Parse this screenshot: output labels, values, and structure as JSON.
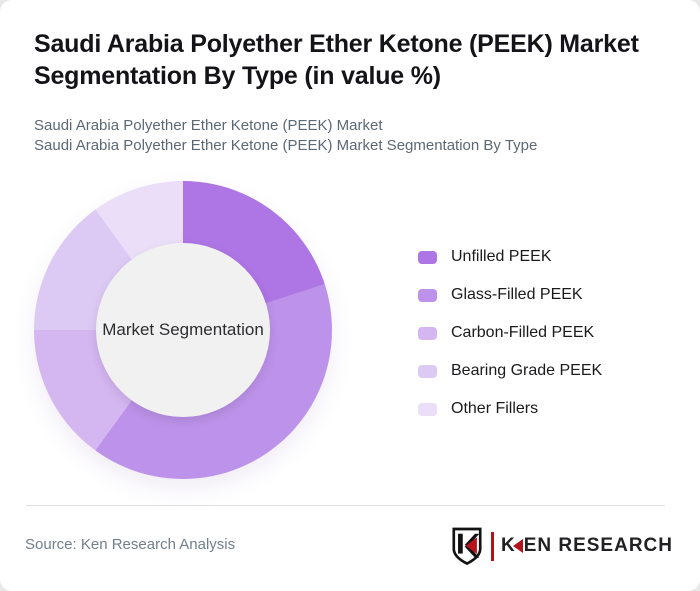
{
  "header": {
    "title": "Saudi Arabia Polyether Ether Ketone (PEEK) Market Segmentation By Type (in value %)",
    "subtitle1": "Saudi Arabia Polyether Ether Ketone (PEEK) Market",
    "subtitle2": "Saudi Arabia Polyether Ether Ketone (PEEK) Market Segmentation By Type"
  },
  "chart_data": {
    "type": "pie",
    "subtype": "donut",
    "title": "Saudi Arabia Polyether Ether Ketone (PEEK) Market Segmentation By Type (in value %)",
    "labels": [
      "Unfilled PEEK",
      "Glass-Filled PEEK",
      "Carbon-Filled PEEK",
      "Bearing Grade PEEK",
      "Other Fillers"
    ],
    "values": [
      20,
      40,
      15,
      15,
      10
    ],
    "unit": "% of market value",
    "colors": [
      "#ae75e5",
      "#bd92ea",
      "#d4b6f1",
      "#dccaf4",
      "#ebdef9"
    ],
    "center_label": "Market Segmentation",
    "center_bg": "#f2f1f2",
    "start_angle_deg": 0,
    "direction": "clockwise",
    "inner_radius_ratio": 0.584,
    "legend_position": "right",
    "data_labels_shown": false
  },
  "footer": {
    "source": "Source: Ken Research Analysis",
    "logo_first_letter": "K",
    "logo_rest": "EN RESEARCH",
    "logo_red": "#b5121b",
    "logo_dark": "#212123"
  }
}
